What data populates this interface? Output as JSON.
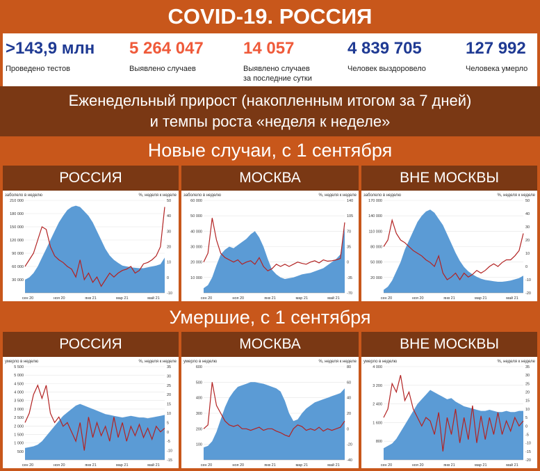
{
  "header": {
    "title": "COVID-19. РОССИЯ"
  },
  "stats": [
    {
      "value": ">143,9 млн",
      "label": "Проведено тестов",
      "color": "#1f3a93"
    },
    {
      "value": "5 264 047",
      "label": "Выявлено случаев",
      "color": "#ef5a3a"
    },
    {
      "value": "14 057",
      "label": "Выявлено случаев\nза последние сутки",
      "color": "#ef5a3a"
    },
    {
      "value": "4 839 705",
      "label": "Человек выздоровело",
      "color": "#1f3a93"
    },
    {
      "value": "127 992",
      "label": "Человека умерло",
      "color": "#1f3a93"
    }
  ],
  "subtitle": {
    "line1": "Еженедельный прирост (накопленным итогом за 7 дней)",
    "line2": "и темпы роста «неделя к неделе»"
  },
  "sections": {
    "new_cases": "Новые случаи, с 1 сентября",
    "deaths": "Умершие, с 1 сентября"
  },
  "regions": [
    "РОССИЯ",
    "МОСКВА",
    "ВНЕ МОСКВЫ"
  ],
  "colors": {
    "area": "#5b9bd5",
    "line": "#b22222",
    "header_orange": "#c8571b",
    "header_brown": "#7a3814"
  },
  "chart_data": [
    {
      "type": "area",
      "region": "РОССИЯ",
      "ylabel": "заболело в неделю",
      "y2label": "%, неделя к неделе",
      "ylim": [
        0,
        210000
      ],
      "y2lim": [
        -20,
        50
      ],
      "yticks": [
        "210 000",
        "180 000",
        "150 000",
        "120 000",
        "90 000",
        "60 000",
        "30 000"
      ],
      "y2ticks": [
        "50",
        "40",
        "30",
        "20",
        "10",
        "0",
        "-10"
      ],
      "xticks": [
        "сен 20",
        "ноя 20",
        "янв 21",
        "мар 21",
        "май 21"
      ],
      "series": [
        {
          "axis": "left",
          "values": [
            30000,
            35000,
            45000,
            60000,
            80000,
            100000,
            120000,
            140000,
            160000,
            175000,
            188000,
            195000,
            198000,
            195000,
            185000,
            175000,
            160000,
            140000,
            120000,
            100000,
            85000,
            75000,
            68000,
            62000,
            60000,
            58000,
            57000,
            56000,
            56000,
            58000,
            60000,
            62000,
            65000,
            80000
          ]
        },
        {
          "axis": "right",
          "values": [
            0,
            5,
            10,
            20,
            30,
            28,
            15,
            8,
            5,
            3,
            0,
            -2,
            -8,
            5,
            -10,
            -5,
            -12,
            -8,
            -15,
            -10,
            -5,
            -8,
            -5,
            -3,
            -2,
            0,
            -5,
            -3,
            2,
            3,
            5,
            8,
            15,
            45
          ]
        }
      ]
    },
    {
      "type": "area",
      "region": "МОСКВА",
      "ylabel": "заболело в неделю",
      "y2label": "%, неделя к неделе",
      "ylim": [
        0,
        60000
      ],
      "y2lim": [
        -70,
        140
      ],
      "yticks": [
        "60 000",
        "50 000",
        "40 000",
        "30 000",
        "20 000",
        "10 000"
      ],
      "y2ticks": [
        "140",
        "105",
        "70",
        "35",
        "0",
        "-35",
        "-70"
      ],
      "xticks": [
        "сен 20",
        "ноя 20",
        "янв 21",
        "мар 21",
        "май 21"
      ],
      "series": [
        {
          "axis": "left",
          "values": [
            3000,
            5000,
            10000,
            18000,
            25000,
            28000,
            30000,
            29000,
            31000,
            33000,
            35000,
            38000,
            40000,
            36000,
            30000,
            22000,
            15000,
            12000,
            10000,
            9000,
            9500,
            10000,
            11000,
            12000,
            12500,
            13000,
            14000,
            15000,
            16000,
            18000,
            20000,
            22000,
            25000,
            42000
          ]
        },
        {
          "axis": "right",
          "values": [
            0,
            20,
            100,
            50,
            20,
            10,
            5,
            0,
            5,
            -5,
            0,
            3,
            -5,
            10,
            -10,
            -20,
            -15,
            -5,
            -10,
            -5,
            -10,
            -5,
            0,
            -3,
            -5,
            0,
            3,
            -2,
            5,
            2,
            3,
            5,
            8,
            90
          ]
        }
      ]
    },
    {
      "type": "area",
      "region": "ВНЕ МОСКВЫ",
      "ylabel": "заболело в неделю",
      "y2label": "%, неделя к неделе",
      "ylim": [
        20000,
        170000
      ],
      "y2lim": [
        -20,
        50
      ],
      "yticks": [
        "170 000",
        "140 000",
        "110 000",
        "80 000",
        "50 000",
        "20 000"
      ],
      "y2ticks": [
        "50",
        "40",
        "30",
        "20",
        "10",
        "0",
        "-10",
        "-20"
      ],
      "xticks": [
        "сен 20",
        "ноя 20",
        "янв 21",
        "мар 21",
        "май 21"
      ],
      "series": [
        {
          "axis": "left",
          "values": [
            25000,
            30000,
            40000,
            55000,
            70000,
            90000,
            105000,
            120000,
            135000,
            145000,
            152000,
            155000,
            150000,
            140000,
            130000,
            115000,
            100000,
            85000,
            72000,
            62000,
            55000,
            50000,
            46000,
            43000,
            41000,
            40000,
            39000,
            38000,
            38000,
            39000,
            40000,
            42000,
            44000,
            48000
          ]
        },
        {
          "axis": "right",
          "values": [
            15,
            20,
            35,
            25,
            20,
            18,
            15,
            12,
            10,
            8,
            5,
            3,
            0,
            8,
            -5,
            -10,
            -8,
            -5,
            -10,
            -5,
            -8,
            -6,
            -3,
            -5,
            -3,
            0,
            2,
            0,
            3,
            5,
            5,
            8,
            12,
            25
          ]
        }
      ]
    },
    {
      "type": "area",
      "region": "РОССИЯ",
      "ylabel": "умерло в неделю",
      "y2label": "%, неделя к неделе",
      "ylim": [
        0,
        5500
      ],
      "y2lim": [
        -15,
        35
      ],
      "yticks": [
        "5 500",
        "5 000",
        "4 500",
        "4 000",
        "3 500",
        "3 000",
        "2 500",
        "2 000",
        "1 500",
        "1 000",
        "500"
      ],
      "y2ticks": [
        "35",
        "30",
        "25",
        "20",
        "15",
        "10",
        "5",
        "0",
        "-5",
        "-10",
        "-15"
      ],
      "xticks": [
        "сен 20",
        "ноя 20",
        "янв 21",
        "мар 21",
        "май 21"
      ],
      "series": [
        {
          "axis": "left",
          "values": [
            700,
            750,
            800,
            900,
            1100,
            1400,
            1700,
            2000,
            2300,
            2600,
            2800,
            3000,
            3200,
            3300,
            3200,
            3100,
            3000,
            2900,
            2800,
            2700,
            2650,
            2600,
            2550,
            2500,
            2550,
            2600,
            2550,
            2500,
            2500,
            2450,
            2500,
            2550,
            2600,
            2650
          ]
        },
        {
          "axis": "right",
          "values": [
            5,
            10,
            20,
            25,
            18,
            25,
            10,
            5,
            8,
            3,
            5,
            0,
            -5,
            5,
            -10,
            8,
            -3,
            5,
            -2,
            3,
            -5,
            8,
            -3,
            5,
            -5,
            3,
            -2,
            4,
            -3,
            2,
            -4,
            3,
            0,
            2
          ]
        }
      ]
    },
    {
      "type": "area",
      "region": "МОСКВА",
      "ylabel": "умерло в неделю",
      "y2label": "%, неделя к неделе",
      "ylim": [
        0,
        600
      ],
      "y2lim": [
        -40,
        80
      ],
      "yticks": [
        "600",
        "500",
        "400",
        "300",
        "200",
        "100"
      ],
      "y2ticks": [
        "80",
        "60",
        "40",
        "20",
        "0",
        "-20",
        "-40"
      ],
      "xticks": [
        "сен 20",
        "ноя 20",
        "янв 21",
        "мар 21",
        "май 21"
      ],
      "series": [
        {
          "axis": "left",
          "values": [
            80,
            90,
            120,
            180,
            260,
            340,
            400,
            440,
            470,
            480,
            490,
            500,
            500,
            495,
            490,
            480,
            470,
            460,
            440,
            380,
            300,
            250,
            260,
            300,
            330,
            350,
            370,
            380,
            390,
            400,
            410,
            420,
            430,
            460
          ]
        },
        {
          "axis": "right",
          "values": [
            0,
            5,
            60,
            30,
            20,
            10,
            5,
            3,
            5,
            0,
            0,
            -2,
            0,
            2,
            -2,
            0,
            0,
            -3,
            -5,
            -8,
            -10,
            0,
            5,
            3,
            -2,
            0,
            -2,
            2,
            -3,
            0,
            -2,
            0,
            2,
            10
          ]
        }
      ]
    },
    {
      "type": "area",
      "region": "ВНЕ МОСКВЫ",
      "ylabel": "умерло в неделю",
      "y2label": "%, неделя к неделе",
      "ylim": [
        0,
        4000
      ],
      "y2lim": [
        -20,
        35
      ],
      "yticks": [
        "4 000",
        "3 200",
        "2 400",
        "1 600",
        "800"
      ],
      "y2ticks": [
        "35",
        "30",
        "25",
        "20",
        "15",
        "10",
        "5",
        "0",
        "-5",
        "-10",
        "-15",
        "-20"
      ],
      "xticks": [
        "сен 20",
        "ноя 20",
        "янв 21",
        "мар 21",
        "май 21"
      ],
      "series": [
        {
          "axis": "left",
          "values": [
            500,
            600,
            700,
            900,
            1200,
            1500,
            1800,
            2100,
            2400,
            2600,
            2800,
            3000,
            2900,
            2800,
            2700,
            2600,
            2650,
            2500,
            2400,
            2300,
            2250,
            2200,
            2150,
            2100,
            2100,
            2150,
            2100,
            2050,
            2050,
            2100,
            2050,
            2050,
            2100,
            2100
          ]
        },
        {
          "axis": "right",
          "values": [
            5,
            10,
            25,
            20,
            30,
            15,
            20,
            10,
            5,
            0,
            5,
            3,
            -5,
            8,
            -15,
            5,
            -5,
            10,
            -10,
            5,
            -8,
            12,
            -10,
            6,
            -8,
            5,
            -5,
            8,
            -5,
            3,
            -3,
            5,
            0,
            3
          ]
        }
      ]
    }
  ]
}
